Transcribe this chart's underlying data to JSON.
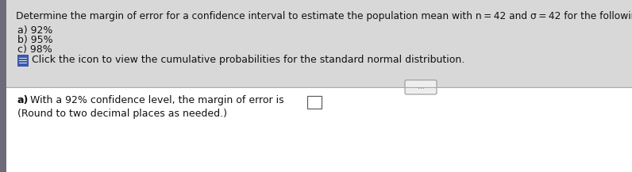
{
  "title_text": "Determine the margin of error for a confidence interval to estimate the population mean with n = 42 and σ = 42 for the following confidence levels.",
  "item_a": "a) 92%",
  "item_b": "b) 95%",
  "item_c": "c) 98%",
  "icon_text": "Click the icon to view the cumulative probabilities for the standard normal distribution.",
  "answer_bold": "a)",
  "answer_line1": " With a 92% confidence level, the margin of error is",
  "answer_line2": "(Round to two decimal places as needed.)",
  "bg_top": "#dcdcdc",
  "bg_bottom": "#ffffff",
  "left_strip_color": "#5a5a6e",
  "divider_color": "#aaaaaa",
  "text_color": "#111111",
  "icon_bg": "#3a5ab0",
  "dots_pill_bg": "#eeeeee",
  "dots_pill_border": "#999999",
  "title_fontsize": 8.8,
  "body_fontsize": 9.0,
  "answer_fontsize": 9.0
}
